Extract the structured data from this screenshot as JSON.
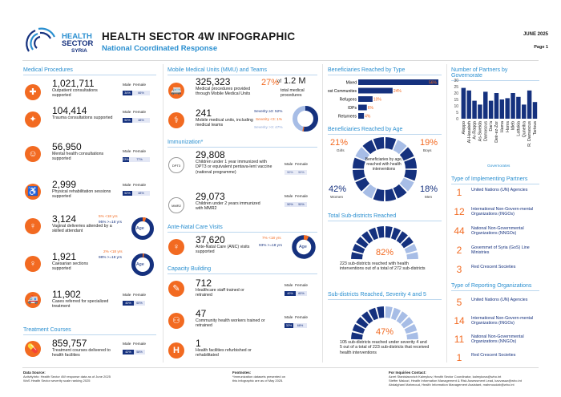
{
  "header": {
    "logo_top": "HEALTH",
    "logo_mid": "SECTOR",
    "logo_bot": "SYRIA",
    "title": "HEALTH SECTOR 4W INFOGRAPHIC",
    "subtitle": "National Coordinated Response",
    "date": "JUNE 2025",
    "page": "Page 1"
  },
  "medical": {
    "title": "Medical Procedures",
    "male": "Male",
    "female": "Female",
    "items": [
      {
        "num": "1,021,711",
        "desc": "Outpatient consultations supported",
        "m": "34%",
        "f": "66%"
      },
      {
        "num": "104,414",
        "desc": "Trauma consultations supported",
        "m": "52%",
        "f": "48%"
      },
      {
        "num": "56,950",
        "desc": "Mental health consultations supported",
        "m": "23%",
        "f": "77%"
      },
      {
        "num": "2,999",
        "desc": "Physical rehabilitation sessions supported",
        "m": "52%",
        "f": "48%"
      },
      {
        "num": "3,124",
        "desc": "Vaginal deliveries attended by a skilled attendant",
        "a": "5% <18 yrs",
        "b": "95% >=18 yrs",
        "age": "Age"
      },
      {
        "num": "1,921",
        "desc": "Caesarian sections supported",
        "a": "2% <18 yrs",
        "b": "98% >=18 yrs",
        "age": "Age"
      },
      {
        "num": "11,902",
        "desc": "Cases referred for specialized treatment",
        "m": "40%",
        "f": "60%"
      }
    ]
  },
  "treatment": {
    "title": "Treatment Courses",
    "num": "859,757",
    "desc": "Treatment courses delivered to health facilities",
    "m": "42%",
    "f": "58%",
    "male": "Male",
    "female": "Female"
  },
  "mmu": {
    "title": "Mobile Medical Units (MMU) and Teams",
    "num1": "325,323",
    "desc1": "Medical procedures provided through Mobile Medical Units",
    "pct": "27%",
    "of": "of",
    "total": "1.2 M",
    "total_desc": "total medical procedures",
    "num2": "241",
    "desc2": "Mobile medical units, including medical teams",
    "sev1": "Severity ≥3: 52%",
    "sev2": "Severity <3: 1%",
    "sev3": "Severity >3: 47%"
  },
  "immun": {
    "title": "Immunization*",
    "male": "Male",
    "female": "Female",
    "num1": "29,808",
    "desc1": "Children under 1 year immunized with DPT3 or equivalent pentava-lent vaccine (national programme)",
    "icon1": "DPT3",
    "m1": "50%",
    "f1": "50%",
    "num2": "29,073",
    "desc2": "Children under 2 years immunized with MMR2",
    "icon2": "MMR2",
    "m2": "50%",
    "f2": "50%"
  },
  "anc": {
    "title": "Ante-Natal Care Visits",
    "num": "37,620",
    "desc": "Ante-Natal Care (ANC) visits supported",
    "a": "7% <18 yrs",
    "b": "93% >=18 yrs",
    "age": "Age"
  },
  "capacity": {
    "title": "Capacity Building",
    "male": "Male",
    "female": "Female",
    "num1": "712",
    "desc1": "Healthcare staff trained or retrained",
    "m1": "40%",
    "f1": "60%",
    "num2": "47",
    "desc2": "Community health workers trained or retrained",
    "m2": "32%",
    "f2": "68%",
    "num3": "1",
    "desc3": "Health facilities refurbished or rehabilitated"
  },
  "bentype": {
    "title": "Beneficiaries Reached by Type",
    "rows": [
      {
        "label": "Mixed",
        "pct": "56%",
        "v": 56
      },
      {
        "label": "Host Communites",
        "pct": "24%",
        "v": 24
      },
      {
        "label": "Refugees",
        "pct": "10%",
        "v": 10
      },
      {
        "label": "IDPs",
        "pct": "6%",
        "v": 6
      },
      {
        "label": "Returnees",
        "pct": "4%",
        "v": 4
      }
    ]
  },
  "benage": {
    "title": "Beneficiaries Reached by Age",
    "girls_pct": "21%",
    "girls": "Girls",
    "boys_pct": "19%",
    "boys": "Boys",
    "women_pct": "42%",
    "women": "Women",
    "men_pct": "18%",
    "men": "Men",
    "center": "Beneficiaries by age, reached with health interventions"
  },
  "subd": {
    "title": "Total Sub-districts Reached",
    "pct": "82%",
    "desc": "223 sub-districts reached with health interventions out of a total of 272 sub-districts"
  },
  "subsev": {
    "title": "Sub-districts Reached, Severity 4 and 5",
    "pct": "47%",
    "desc": "105 sub-districts reached under severity 4 and 5 out of a total of 223 sub-districts that received health interventions"
  },
  "partners": {
    "title": "Number of Partners by Governorate",
    "xlabel": "Governorates"
  },
  "chart_data": {
    "type": "bar",
    "title": "Number of Partners by Governorate",
    "xlabel": "Governorates",
    "ylim": [
      0,
      30
    ],
    "categories": [
      "Aleppo",
      "Al-Hasakeh",
      "Ar-Raqqa",
      "As-Sweida",
      "Damascus",
      "Dar'a",
      "Deir-ez-Zor",
      "Hama",
      "Homs",
      "Idleb",
      "Lattakia",
      "Quneitra",
      "R. Damascus",
      "Tartous"
    ],
    "values": [
      24,
      22,
      14,
      11,
      21,
      14,
      20,
      15,
      16,
      20,
      17,
      11,
      22,
      13
    ],
    "yticks": [
      "30",
      "25",
      "20",
      "15",
      "10",
      "5",
      "0"
    ]
  },
  "impl": {
    "title": "Type of Implementing Partners",
    "items": [
      {
        "n": "1",
        "t": "United Nations (UN) Agencies"
      },
      {
        "n": "12",
        "t": "International Non-Govern-mental Organizations (INGOs)"
      },
      {
        "n": "44",
        "t": "National Non-Governmental Organizations (NNGOs)"
      },
      {
        "n": "2",
        "t": "Governmet of Syria (GoS) Line Ministries"
      },
      {
        "n": "3",
        "t": "Red Crescent Societies"
      }
    ]
  },
  "rep": {
    "title": "Type of Reporting Organizations",
    "items": [
      {
        "n": "5",
        "t": "United Nations (UN) Agencies"
      },
      {
        "n": "14",
        "t": "International Non-Govern-mental Organizations (INGOs)"
      },
      {
        "n": "11",
        "t": "National Non-Governmental Organizations (NNGOs)"
      },
      {
        "n": "1",
        "t": "Red Crescent Societies"
      }
    ]
  },
  "footer": {
    "ds_h": "Data Source:",
    "ds1": "ActivityInfo: Health Sector 4W response data as of June 2025",
    "ds2": "WoS Health Sector severity scale ranking 2025",
    "fn_h": "Footnotes:",
    "fn1": "*Immunization datasets presented on",
    "fn2": "this infographic are as of May 2025.",
    "inq_h": "For Inquiries Contact:",
    "inq1": "Azret Stanislavovich Kalmykov, Health Sector Coordinator, kalmykova@who.int",
    "inq2": "Steffer Makazi, Health Information Management & Risk Assessment Lead, kavvasaz@who.int",
    "inq3": "Abdalghani Mahmoud, Health Information Management Assistant, mahmoudab@who.int"
  }
}
